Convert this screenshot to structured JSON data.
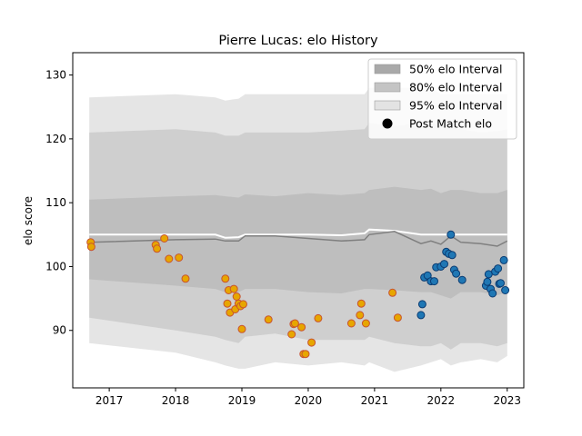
{
  "chart_data": {
    "type": "scatter",
    "title": "Pierre Lucas: elo History",
    "xlabel": "",
    "ylabel": "elo score",
    "xlim": [
      2016.45,
      2023.25
    ],
    "ylim": [
      81,
      133.5
    ],
    "xticks": [
      2017,
      2018,
      2019,
      2020,
      2021,
      2022,
      2023
    ],
    "yticks": [
      90,
      100,
      110,
      120,
      130
    ],
    "legend_position": "top-right",
    "legend": [
      {
        "label": "50% elo Interval",
        "kind": "band",
        "color": "#a9a9a9"
      },
      {
        "label": "80% elo Interval",
        "kind": "band",
        "color": "#c4c4c4"
      },
      {
        "label": "95% elo Interval",
        "kind": "band",
        "color": "#e3e3e3"
      },
      {
        "label": "Post Match elo",
        "kind": "marker",
        "color": "#000000"
      }
    ],
    "bands": {
      "x": [
        2016.7,
        2018.0,
        2018.6,
        2018.75,
        2018.95,
        2019.05,
        2019.5,
        2020.0,
        2020.5,
        2020.85,
        2020.92,
        2021.3,
        2021.7,
        2021.85,
        2022.0,
        2022.15,
        2022.3,
        2022.6,
        2022.85,
        2023.0
      ],
      "mean": [
        103.8,
        104.2,
        104.3,
        104.0,
        104.0,
        104.8,
        104.8,
        104.4,
        104.0,
        104.2,
        105.0,
        105.5,
        103.6,
        104.0,
        103.5,
        104.8,
        103.8,
        103.6,
        103.2,
        104.0
      ],
      "lo50": [
        103.8,
        104.2,
        104.3,
        104.0,
        104.0,
        104.8,
        104.8,
        104.4,
        104.0,
        104.2,
        105.0,
        105.5,
        103.6,
        104.0,
        103.5,
        104.8,
        103.8,
        103.6,
        103.2,
        104.0
      ],
      "hi50": [
        105.0,
        105.0,
        105.0,
        104.5,
        104.6,
        105.0,
        105.0,
        105.0,
        104.9,
        105.2,
        105.8,
        105.6,
        105.0,
        105.0,
        105.0,
        105.0,
        105.0,
        105.0,
        105.0,
        105.0
      ],
      "lo80": [
        98.0,
        97.0,
        96.5,
        96.0,
        96.0,
        96.5,
        96.5,
        96.0,
        95.8,
        96.5,
        96.5,
        96.3,
        96.0,
        96.0,
        95.5,
        95.0,
        96.0,
        96.0,
        95.5,
        96.0
      ],
      "hi80": [
        110.5,
        111.0,
        111.2,
        111.0,
        110.8,
        111.3,
        111.0,
        111.5,
        111.2,
        111.5,
        112.0,
        112.5,
        112.0,
        112.2,
        111.5,
        112.0,
        112.0,
        111.5,
        111.5,
        112.0
      ],
      "lo95": [
        92.0,
        90.0,
        89.0,
        88.5,
        88.0,
        89.0,
        89.5,
        88.5,
        88.5,
        88.5,
        89.0,
        88.0,
        87.5,
        87.5,
        88.0,
        87.0,
        88.0,
        88.0,
        87.5,
        88.0
      ],
      "hi95": [
        121.0,
        121.5,
        121.0,
        120.5,
        120.5,
        121.0,
        121.0,
        121.0,
        121.3,
        121.5,
        122.5,
        122.0,
        122.5,
        122.5,
        122.0,
        122.0,
        121.5,
        121.0,
        121.2,
        121.5
      ],
      "lo99": [
        88.0,
        86.5,
        85.0,
        84.5,
        84.0,
        84.0,
        85.0,
        84.5,
        85.0,
        84.5,
        85.0,
        83.5,
        84.5,
        85.0,
        85.5,
        84.5,
        85.0,
        85.5,
        85.0,
        86.0
      ],
      "hi99": [
        126.5,
        127.0,
        126.5,
        126.0,
        126.3,
        127.0,
        127.0,
        127.0,
        127.0,
        127.0,
        128.0,
        128.0,
        128.0,
        128.0,
        127.0,
        127.0,
        127.0,
        127.0,
        127.0,
        127.0
      ]
    },
    "series": [
      {
        "name": "",
        "color": "#e7a600",
        "edge": "#c8532f",
        "points": [
          [
            2016.72,
            103.8
          ],
          [
            2016.73,
            103.1
          ],
          [
            2017.7,
            103.4
          ],
          [
            2017.72,
            102.8
          ],
          [
            2017.83,
            104.4
          ],
          [
            2017.9,
            101.2
          ],
          [
            2018.05,
            101.4
          ],
          [
            2018.15,
            98.1
          ],
          [
            2018.75,
            98.1
          ],
          [
            2018.78,
            94.2
          ],
          [
            2018.8,
            96.3
          ],
          [
            2018.82,
            92.8
          ],
          [
            2018.88,
            96.5
          ],
          [
            2018.9,
            93.3
          ],
          [
            2018.92,
            95.3
          ],
          [
            2018.95,
            94.2
          ],
          [
            2018.98,
            93.8
          ],
          [
            2019.0,
            90.2
          ],
          [
            2019.02,
            94.1
          ],
          [
            2019.4,
            91.7
          ],
          [
            2019.75,
            89.4
          ],
          [
            2019.78,
            91.0
          ],
          [
            2019.8,
            91.1
          ],
          [
            2019.9,
            90.5
          ],
          [
            2019.93,
            86.3
          ],
          [
            2019.96,
            86.3
          ],
          [
            2020.05,
            88.1
          ],
          [
            2020.15,
            91.9
          ],
          [
            2020.65,
            91.1
          ],
          [
            2020.78,
            92.4
          ],
          [
            2020.8,
            94.2
          ],
          [
            2020.87,
            91.1
          ],
          [
            2021.27,
            95.9
          ],
          [
            2021.35,
            92.0
          ]
        ]
      },
      {
        "name": "",
        "color": "#1f77b4",
        "edge": "#0b3c73",
        "points": [
          [
            2021.7,
            92.4
          ],
          [
            2021.72,
            94.1
          ],
          [
            2021.75,
            98.3
          ],
          [
            2021.8,
            98.6
          ],
          [
            2021.85,
            97.7
          ],
          [
            2021.9,
            97.7
          ],
          [
            2021.93,
            99.9
          ],
          [
            2022.0,
            100.0
          ],
          [
            2022.05,
            100.4
          ],
          [
            2022.08,
            102.3
          ],
          [
            2022.12,
            102.0
          ],
          [
            2022.15,
            105.0
          ],
          [
            2022.17,
            101.8
          ],
          [
            2022.2,
            99.5
          ],
          [
            2022.23,
            98.9
          ],
          [
            2022.32,
            97.9
          ],
          [
            2022.68,
            97.0
          ],
          [
            2022.7,
            97.6
          ],
          [
            2022.72,
            98.8
          ],
          [
            2022.75,
            96.5
          ],
          [
            2022.78,
            95.8
          ],
          [
            2022.82,
            99.2
          ],
          [
            2022.86,
            99.7
          ],
          [
            2022.88,
            97.3
          ],
          [
            2022.9,
            97.4
          ],
          [
            2022.95,
            101.0
          ],
          [
            2022.97,
            96.3
          ]
        ]
      }
    ]
  }
}
